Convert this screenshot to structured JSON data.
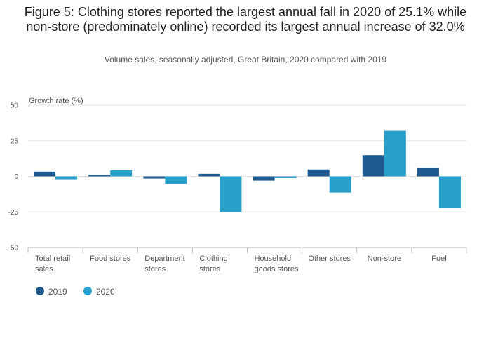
{
  "title": "Figure 5: Clothing stores reported the largest annual fall in 2020 of 25.1% while non-store (predominately online) recorded its largest annual increase of 32.0%",
  "subtitle": "Volume sales, seasonally adjusted, Great Britain, 2020 compared with 2019",
  "colors": {
    "2019": "#1f5b8f",
    "2020": "#27a0cc",
    "grid": "#e3e3e3",
    "axis": "#bbbbbb"
  },
  "chart_data": {
    "type": "bar",
    "title": "Figure 5: Clothing stores reported the largest annual fall in 2020 of 25.1% while non-store (predominately online) recorded its largest annual increase of 32.0%",
    "subtitle": "Volume sales, seasonally adjusted, Great Britain, 2020 compared with 2019",
    "ylabel": "Growth rate (%)",
    "xlabel": "",
    "ylim": [
      -50,
      50
    ],
    "yticks": [
      50,
      25,
      0,
      -25,
      -50
    ],
    "grid": true,
    "legend_position": "bottom-left",
    "categories": [
      [
        "Total retail",
        "sales"
      ],
      [
        "Food stores"
      ],
      [
        "Department",
        "stores"
      ],
      [
        "Clothing",
        "stores"
      ],
      [
        "Household",
        "goods stores"
      ],
      [
        "Other stores"
      ],
      [
        "Non-store"
      ],
      [
        "Fuel"
      ]
    ],
    "series": [
      {
        "name": "2019",
        "values": [
          3.3,
          1.2,
          -1.5,
          1.8,
          -3.0,
          4.8,
          14.9,
          5.8
        ]
      },
      {
        "name": "2020",
        "values": [
          -2.0,
          4.2,
          -5.3,
          -25.1,
          -1.2,
          -11.4,
          32.0,
          -22.1
        ]
      }
    ]
  }
}
